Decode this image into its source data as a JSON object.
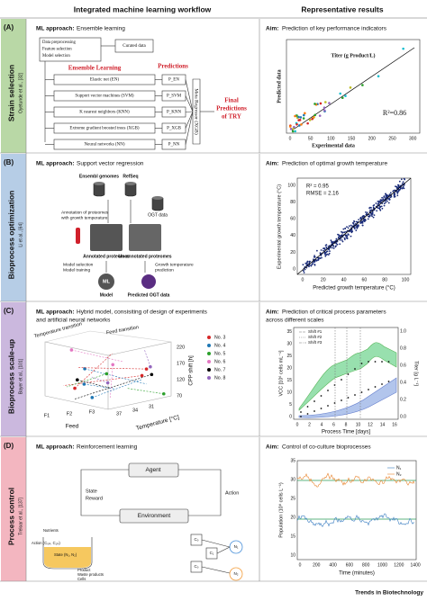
{
  "header": {
    "left": "Integrated machine learning workflow",
    "right": "Representative results"
  },
  "panels": [
    {
      "letter": "(A)",
      "side_title": "Strain selection",
      "side_ref": "Oyetunde et al., [32]",
      "approach_label": "ML approach:",
      "approach": "Ensemble learning",
      "aim_label": "Aim:",
      "aim": "Prediction of key performance indicators",
      "diagram": {
        "preprocessing": [
          "Data preprocessing",
          "Feature selection",
          "Model selection"
        ],
        "curated": "Curated data",
        "ensemble": "Ensemble Learning",
        "predictions": "Predictions",
        "models": [
          "Elastic net (EN)",
          "Support vector machines (SVM)",
          "K nearest neighbors (KNN)",
          "Extreme gradient boosted trees (XGB)",
          "Neural networks (NN)"
        ],
        "preds": [
          "P_EN",
          "P_SVM",
          "P_KNN",
          "P_XGB",
          "P_NN"
        ],
        "meta": "Meta Regressor (XGB)",
        "final": [
          "Final",
          "Predictions",
          "of TRY"
        ]
      },
      "result": {
        "title": "Titer (g Product/L)",
        "xlabel": "Experimental data",
        "ylabel": "Predicted data",
        "r2": "R²=0.86",
        "xticks": [
          "0",
          "50",
          "100",
          "150",
          "200",
          "250",
          "300"
        ]
      }
    },
    {
      "letter": "(B)",
      "side_title": "Bioprocess optimization",
      "side_ref": "Li et al., [64]",
      "approach_label": "ML approach:",
      "approach": "Support vector regression",
      "aim_label": "Aim:",
      "aim": "Prediction of optimal growth temperature",
      "diagram": {
        "sources": [
          "Ensembl genomes",
          "RefSeq"
        ],
        "ogt": "OGT data",
        "annotation": [
          "Annotation of proteomes",
          "with growth temperature"
        ],
        "annotated": "Annotated proteomes",
        "unannotated": "Un-annotated proteomes",
        "model_sel": [
          "Model selection",
          "Model training"
        ],
        "gtp": [
          "Growth temperature",
          "prediction"
        ],
        "ml": "ML",
        "model": "Model",
        "predicted": "Predicted OGT data"
      },
      "result": {
        "r2": "R² = 0.95",
        "rmse": "RMSE = 2.16",
        "xlabel": "Predicted growth temperature (°C)",
        "ylabel": "Experimental growth temperature (°C)",
        "xticks": [
          "0",
          "20",
          "40",
          "60",
          "80",
          "100"
        ],
        "yticks": [
          "0",
          "20",
          "40",
          "60",
          "80",
          "100"
        ]
      }
    },
    {
      "letter": "(C)",
      "side_title": "Bioprocess scale-up",
      "side_ref": "Bayer et al., [101]",
      "approach_label": "ML approach:",
      "approach": [
        "Hybrid model, consisiting of design of experiments",
        "and artificial neural networks"
      ],
      "aim_label": "Aim:",
      "aim": [
        "Prediction of critical process parameters",
        "across different scales"
      ],
      "diagram": {
        "temp_transition": "Temperature transition",
        "feed_transition": "Feed transition",
        "feed": "Feed",
        "temperature": "Temperature [°C]",
        "cpp": "CPP shift [h]",
        "feeds": [
          "F1",
          "F2",
          "F3"
        ],
        "temps": [
          "31",
          "34",
          "37"
        ],
        "cpps": [
          "70",
          "120",
          "170",
          "220"
        ],
        "legend": [
          "No. 3",
          "No. 4",
          "No. 5",
          "No. 6",
          "No. 7",
          "No. 8"
        ]
      },
      "result": {
        "shifts": [
          "Shift #1",
          "Shift #2",
          "Shift #3"
        ],
        "ylabel": "VCC [10⁶ cells mL⁻¹]",
        "y2label": "Titer [g L⁻¹]",
        "xlabel": "Process Time [days]",
        "xticks": [
          "0",
          "2",
          "4",
          "6",
          "8",
          "10",
          "12",
          "14",
          "16"
        ],
        "yticks": [
          "0",
          "5",
          "10",
          "15",
          "20",
          "25",
          "30",
          "35"
        ],
        "y2ticks": [
          "0.0",
          "0.2",
          "0.4",
          "0.6",
          "0.8",
          "1.0"
        ]
      }
    },
    {
      "letter": "(D)",
      "side_title": "Process control",
      "side_ref": "Treloar et al., [137]",
      "approach_label": "ML approach:",
      "approach": "Reinforcement learning",
      "aim_label": "Aim:",
      "aim": "Control of co-culture bioprocesses",
      "diagram": {
        "agent": "Agent",
        "environment": "Environment",
        "state": "State",
        "reward": "Reward",
        "action": "Action",
        "nutrients": "Nutrients",
        "tank_action": "Action (C₀ᵢₙ, C₁ᵢₙ)",
        "tank_state": "State (N₁, N₂)",
        "outputs": [
          "Product",
          "Waste products",
          "Cells"
        ],
        "c": [
          "C₀",
          "C₁",
          "C₀"
        ],
        "n": [
          "N₁",
          "N₂"
        ]
      },
      "result": {
        "legend": [
          "N₁",
          "N₂"
        ],
        "ylabel": "Population (10⁸ cells L⁻¹)",
        "xlabel": "Time (minutes)",
        "xticks": [
          "0",
          "200",
          "400",
          "600",
          "800",
          "1000",
          "1200",
          "1400"
        ],
        "yticks": [
          "10",
          "15",
          "20",
          "25",
          "30",
          "35"
        ]
      }
    }
  ],
  "footer": "Trends in Biotechnology"
}
